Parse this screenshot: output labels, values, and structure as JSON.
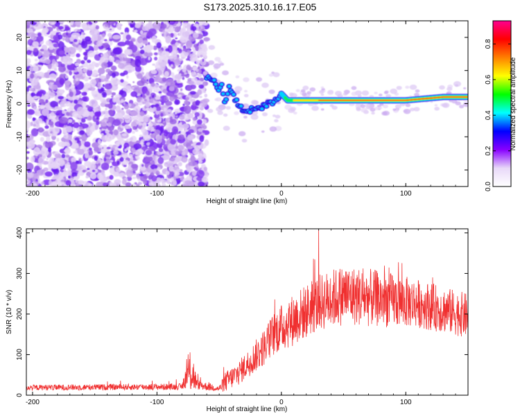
{
  "title": "S173.2025.310.16.17.E05",
  "chart_data": [
    {
      "type": "heatmap",
      "xlabel": "Height of straight line (km)",
      "ylabel": "Frequency (Hz)",
      "xlim": [
        -205,
        150
      ],
      "ylim": [
        -25,
        25
      ],
      "x_ticks": [
        -200,
        -100,
        0,
        100
      ],
      "x_tick_labels": [
        "-200",
        "-100",
        "0",
        "100"
      ],
      "y_ticks": [
        -20,
        -10,
        0,
        10,
        20
      ],
      "y_tick_labels": [
        "-20",
        "-10",
        "0",
        "10",
        "20"
      ],
      "noise_region_x": [
        -205,
        -60
      ],
      "ridge": [
        {
          "x": -60,
          "f": 8
        },
        {
          "x": -55,
          "f": 7
        },
        {
          "x": -50,
          "f": 4
        },
        {
          "x": -48,
          "f": 6
        },
        {
          "x": -45,
          "f": 0
        },
        {
          "x": -42,
          "f": 5
        },
        {
          "x": -38,
          "f": 2
        },
        {
          "x": -34,
          "f": -1
        },
        {
          "x": -30,
          "f": -2
        },
        {
          "x": -25,
          "f": -2
        },
        {
          "x": -20,
          "f": -1
        },
        {
          "x": -15,
          "f": -1
        },
        {
          "x": -10,
          "f": 0
        },
        {
          "x": -5,
          "f": 1
        },
        {
          "x": 0,
          "f": 3
        },
        {
          "x": 5,
          "f": 1
        },
        {
          "x": 20,
          "f": 1
        },
        {
          "x": 60,
          "f": 1
        },
        {
          "x": 100,
          "f": 1
        },
        {
          "x": 130,
          "f": 2
        },
        {
          "x": 150,
          "f": 2
        }
      ],
      "colorbar": {
        "label": "Normalized spectral amplitude",
        "range": [
          0,
          0.93
        ],
        "ticks": [
          0,
          0.2,
          0.4,
          0.6,
          0.8
        ],
        "tick_labels": [
          "0.0",
          "0.2",
          "0.4",
          "0.6",
          "0.8"
        ],
        "colors": [
          "#ffffff",
          "#e8d8f8",
          "#8800ff",
          "#0000ff",
          "#00ffff",
          "#00ff00",
          "#ffff00",
          "#ff8000",
          "#ff0000",
          "#ff0090"
        ]
      }
    },
    {
      "type": "line",
      "xlabel": "Height of straight line (km)",
      "ylabel": "SNR (10 * v/v)",
      "xlim": [
        -205,
        150
      ],
      "ylim": [
        0,
        410
      ],
      "x_ticks": [
        -200,
        -100,
        0,
        100
      ],
      "x_tick_labels": [
        "-200",
        "-100",
        "0",
        "100"
      ],
      "y_ticks": [
        0,
        100,
        200,
        300,
        400
      ],
      "y_tick_labels": [
        "0",
        "100",
        "200",
        "300",
        "400"
      ],
      "color": "#f03030",
      "envelope": [
        {
          "x": -205,
          "base": 18,
          "spread": 14
        },
        {
          "x": -80,
          "base": 20,
          "spread": 16
        },
        {
          "x": -76,
          "base": 45,
          "spread": 60
        },
        {
          "x": -72,
          "base": 55,
          "spread": 120
        },
        {
          "x": -68,
          "base": 25,
          "spread": 25
        },
        {
          "x": -50,
          "base": 15,
          "spread": 15
        },
        {
          "x": -45,
          "base": 30,
          "spread": 50
        },
        {
          "x": -35,
          "base": 50,
          "spread": 60
        },
        {
          "x": -25,
          "base": 80,
          "spread": 70
        },
        {
          "x": -15,
          "base": 110,
          "spread": 90
        },
        {
          "x": -5,
          "base": 150,
          "spread": 110
        },
        {
          "x": 10,
          "base": 180,
          "spread": 130
        },
        {
          "x": 30,
          "base": 220,
          "spread": 140
        },
        {
          "x": 50,
          "base": 240,
          "spread": 150
        },
        {
          "x": 80,
          "base": 230,
          "spread": 140
        },
        {
          "x": 110,
          "base": 220,
          "spread": 120
        },
        {
          "x": 150,
          "base": 190,
          "spread": 110
        }
      ]
    }
  ]
}
